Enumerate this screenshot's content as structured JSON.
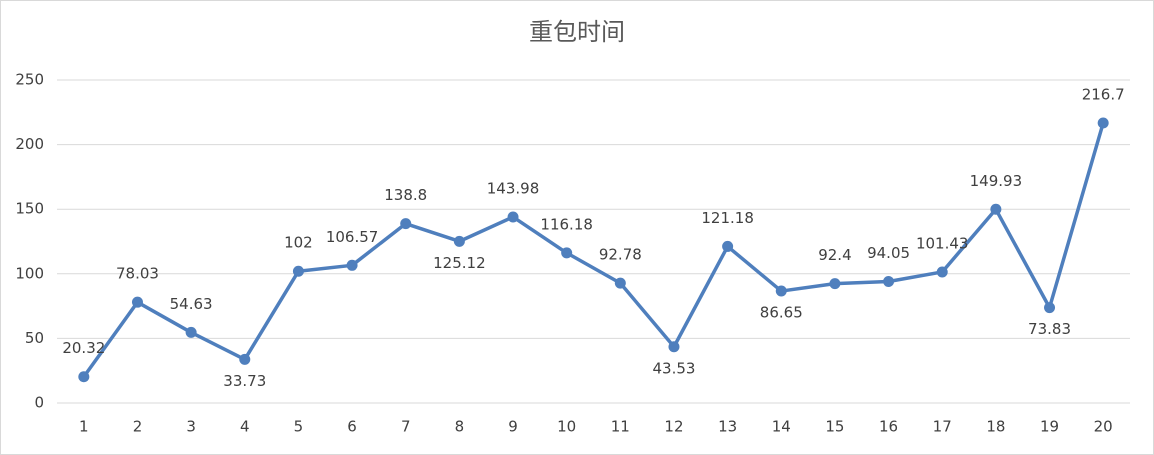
{
  "chart_data": {
    "type": "line",
    "title": "重包时间",
    "categories": [
      "1",
      "2",
      "3",
      "4",
      "5",
      "6",
      "7",
      "8",
      "9",
      "10",
      "11",
      "12",
      "13",
      "14",
      "15",
      "16",
      "17",
      "18",
      "19",
      "20"
    ],
    "series": [
      {
        "color": "#4f7fbd",
        "values": [
          20.32,
          78.03,
          54.63,
          33.73,
          102,
          106.57,
          138.8,
          125.12,
          143.98,
          116.18,
          92.78,
          43.53,
          121.18,
          86.65,
          92.4,
          94.05,
          101.43,
          149.93,
          73.83,
          216.7
        ]
      }
    ],
    "ylim": [
      0,
      250
    ],
    "yticks": [
      0,
      50,
      100,
      150,
      200,
      250
    ],
    "grid": true
  }
}
